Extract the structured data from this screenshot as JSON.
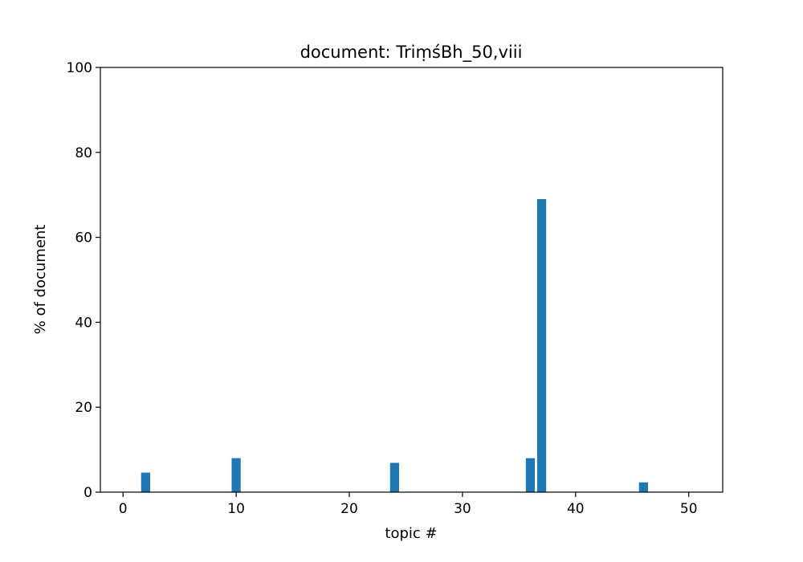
{
  "chart_data": {
    "type": "bar",
    "title": "document: TriṃśBh_50,viii",
    "xlabel": "topic #",
    "ylabel": "% of document",
    "xlim": [
      -2,
      53
    ],
    "ylim": [
      0,
      100
    ],
    "xticks": [
      0,
      10,
      20,
      30,
      40,
      50
    ],
    "yticks": [
      0,
      20,
      40,
      60,
      80,
      100
    ],
    "grid": false,
    "bar_color": "#1f77b4",
    "x": [
      2,
      10,
      24,
      36,
      37,
      46
    ],
    "values": [
      4.6,
      8.0,
      6.9,
      8.0,
      69.0,
      2.3
    ]
  }
}
